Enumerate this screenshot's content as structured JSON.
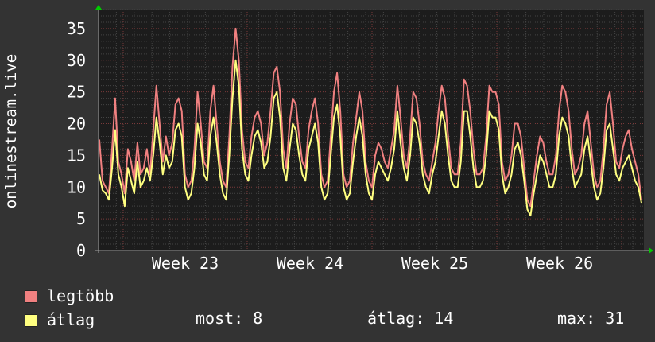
{
  "chart_data": {
    "type": "line",
    "ylabel": "onlinestream.live",
    "ylim": [
      0,
      38
    ],
    "yticks": [
      0,
      5,
      10,
      15,
      20,
      25,
      30,
      35
    ],
    "xlabels": [
      "Week 23",
      "Week 24",
      "Week 25",
      "Week 26"
    ],
    "grid": true,
    "series": [
      {
        "name": "legtöbb",
        "color": "#f08080",
        "values": [
          17.5,
          11,
          10,
          9,
          16,
          24,
          14,
          12,
          9,
          16,
          14,
          11,
          17,
          12,
          13,
          16,
          12,
          19,
          26,
          20,
          14,
          18,
          15,
          17,
          23,
          24,
          22,
          12,
          10,
          11,
          16,
          25,
          20,
          14,
          13,
          22,
          26,
          20,
          14,
          11,
          10,
          18,
          29,
          35,
          30,
          19,
          14,
          13,
          18,
          21,
          22,
          20,
          15,
          17,
          22,
          28,
          29,
          25,
          16,
          13,
          20,
          24,
          23,
          18,
          14,
          13,
          19,
          22,
          24,
          20,
          12,
          10,
          11,
          18,
          25,
          28,
          22,
          12,
          10,
          11,
          17,
          21,
          25,
          22,
          14,
          11,
          10,
          15,
          17,
          16,
          14,
          13,
          16,
          19,
          26,
          21,
          15,
          13,
          18,
          25,
          24,
          20,
          14,
          12,
          11,
          14,
          17,
          22,
          26,
          24,
          18,
          13,
          12,
          12,
          17,
          27,
          26,
          22,
          16,
          12,
          12,
          13,
          18,
          26,
          25,
          25,
          23,
          14,
          11,
          12,
          15,
          20,
          20,
          18,
          13,
          8,
          7,
          11,
          15,
          18,
          17,
          14,
          12,
          12,
          15,
          22,
          26,
          25,
          22,
          16,
          12,
          13,
          15,
          20,
          22,
          17,
          12,
          10,
          11,
          16,
          23,
          25,
          20,
          14,
          13,
          16,
          18,
          19,
          16,
          14,
          12,
          8
        ]
      },
      {
        "name": "átlag",
        "color": "#ffff80",
        "values": [
          12,
          9.5,
          9,
          8,
          13,
          19,
          12,
          10,
          7,
          13,
          11,
          9,
          14,
          10,
          11,
          13,
          11,
          15,
          21,
          17,
          12,
          15,
          13,
          14,
          19,
          20,
          18,
          10,
          8,
          9,
          13,
          20,
          17,
          12,
          11,
          18,
          21,
          17,
          12,
          9,
          8,
          15,
          24,
          30,
          26,
          16,
          12,
          11,
          15,
          18,
          19,
          17,
          13,
          14,
          18,
          24,
          25,
          21,
          13,
          11,
          16,
          20,
          19,
          15,
          12,
          11,
          16,
          18,
          20,
          17,
          10,
          8,
          9,
          15,
          21,
          23,
          18,
          10,
          8,
          9,
          14,
          18,
          21,
          18,
          12,
          9,
          8,
          12,
          14,
          13,
          12,
          11,
          13,
          16,
          22,
          17,
          13,
          11,
          15,
          21,
          20,
          17,
          12,
          10,
          9,
          12,
          14,
          18,
          22,
          20,
          15,
          11,
          10,
          10,
          14,
          22,
          22,
          18,
          13,
          10,
          10,
          11,
          15,
          22,
          21,
          21,
          19,
          12,
          9,
          10,
          12,
          16,
          17,
          15,
          11,
          6.5,
          5.5,
          9,
          12,
          15,
          14,
          12,
          10,
          10,
          12,
          18,
          21,
          20,
          18,
          13,
          10,
          11,
          12,
          16,
          18,
          14,
          10,
          8,
          9,
          13,
          19,
          20,
          16,
          12,
          11,
          13,
          14,
          15,
          13,
          11,
          10,
          7.5
        ]
      }
    ],
    "legend": [
      {
        "label": "legtöbb",
        "color": "#f08080"
      },
      {
        "label": "átlag",
        "color": "#ffff80"
      }
    ]
  },
  "stats": {
    "most": "most: 8",
    "atlag": "átlag: 14",
    "max": "max: 31"
  }
}
